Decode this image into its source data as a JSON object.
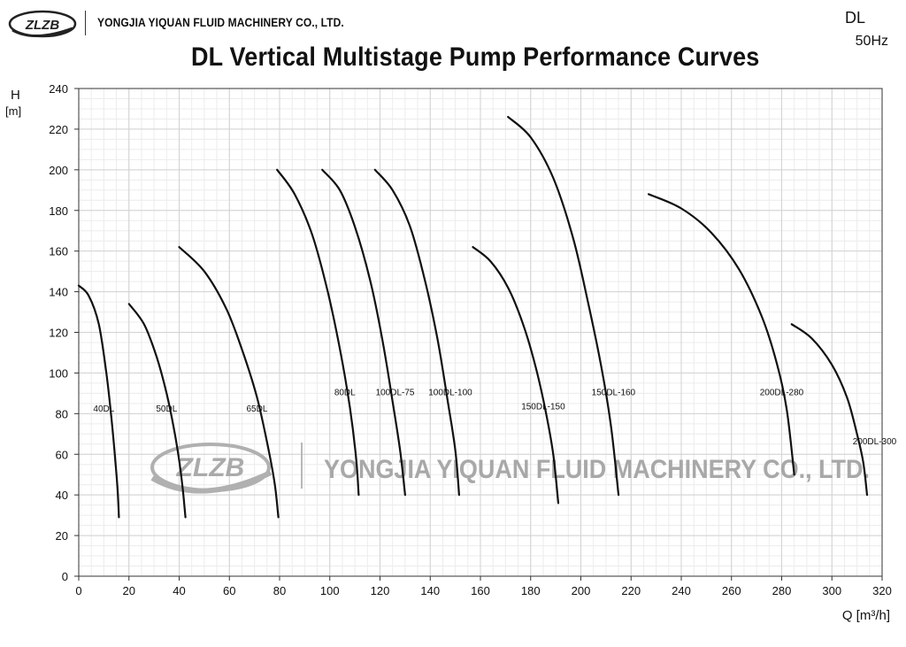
{
  "header": {
    "logo_text": "ZLZB",
    "company_name": "YONGJIA YIQUAN FLUID MACHINERY CO., LTD.",
    "model": "DL",
    "frequency": "50Hz"
  },
  "watermark": {
    "logo_text": "ZLZB",
    "company_name": "YONGJIA YIQUAN FLUID MACHINERY CO., LTD."
  },
  "chart_data": {
    "type": "line",
    "title": "DL Vertical Multistage Pump Performance Curves",
    "ylabel": "H",
    "ylabel_unit": "[m]",
    "xlabel": "Q [m³/h]",
    "xlim": [
      0,
      320
    ],
    "ylim": [
      0,
      240
    ],
    "xticks": [
      0,
      20,
      40,
      60,
      80,
      100,
      120,
      140,
      160,
      180,
      200,
      220,
      240,
      260,
      280,
      300,
      320
    ],
    "yticks": [
      0,
      20,
      40,
      60,
      80,
      100,
      120,
      140,
      160,
      180,
      200,
      220,
      240
    ],
    "grid": true,
    "legend": "none",
    "series": [
      {
        "name": "40DL",
        "label_at": [
          10,
          81
        ],
        "points": [
          [
            0,
            143
          ],
          [
            4,
            138
          ],
          [
            8,
            124
          ],
          [
            11,
            100
          ],
          [
            13,
            78
          ],
          [
            14.5,
            58
          ],
          [
            15.5,
            42
          ],
          [
            16,
            29
          ]
        ]
      },
      {
        "name": "50DL",
        "label_at": [
          35,
          81
        ],
        "points": [
          [
            20,
            134
          ],
          [
            26,
            124
          ],
          [
            31,
            108
          ],
          [
            35,
            90
          ],
          [
            38,
            72
          ],
          [
            40,
            57
          ],
          [
            41.5,
            42
          ],
          [
            42.5,
            29
          ]
        ]
      },
      {
        "name": "65DL",
        "label_at": [
          71,
          81
        ],
        "points": [
          [
            40,
            162
          ],
          [
            50,
            150
          ],
          [
            59,
            131
          ],
          [
            66,
            108
          ],
          [
            71,
            88
          ],
          [
            75,
            66
          ],
          [
            78,
            46
          ],
          [
            79.5,
            29
          ]
        ]
      },
      {
        "name": "80DL",
        "label_at": [
          106,
          89
        ],
        "points": [
          [
            79,
            200
          ],
          [
            86,
            188
          ],
          [
            93,
            168
          ],
          [
            99,
            141
          ],
          [
            104,
            112
          ],
          [
            108,
            83
          ],
          [
            110.5,
            58
          ],
          [
            111.5,
            40
          ]
        ]
      },
      {
        "name": "100DL-75",
        "label_at": [
          126,
          89
        ],
        "points": [
          [
            97,
            200
          ],
          [
            104,
            190
          ],
          [
            110,
            172
          ],
          [
            116,
            146
          ],
          [
            121,
            116
          ],
          [
            125,
            86
          ],
          [
            128,
            62
          ],
          [
            130,
            40
          ]
        ]
      },
      {
        "name": "100DL-100",
        "label_at": [
          148,
          89
        ],
        "points": [
          [
            118,
            200
          ],
          [
            125,
            190
          ],
          [
            132,
            172
          ],
          [
            138,
            145
          ],
          [
            143,
            116
          ],
          [
            147,
            86
          ],
          [
            150,
            62
          ],
          [
            151.5,
            40
          ]
        ]
      },
      {
        "name": "150DL-150",
        "label_at": [
          185,
          82
        ],
        "points": [
          [
            157,
            162
          ],
          [
            164,
            155
          ],
          [
            171,
            142
          ],
          [
            177,
            124
          ],
          [
            182,
            103
          ],
          [
            186,
            81
          ],
          [
            189,
            60
          ],
          [
            191,
            36
          ]
        ]
      },
      {
        "name": "150DL-160",
        "label_at": [
          213,
          89
        ],
        "points": [
          [
            171,
            226
          ],
          [
            180,
            216
          ],
          [
            189,
            196
          ],
          [
            197,
            166
          ],
          [
            203,
            134
          ],
          [
            208,
            104
          ],
          [
            212,
            74
          ],
          [
            215,
            40
          ]
        ]
      },
      {
        "name": "200DL-280",
        "label_at": [
          280,
          89
        ],
        "points": [
          [
            227,
            188
          ],
          [
            240,
            181
          ],
          [
            252,
            169
          ],
          [
            263,
            151
          ],
          [
            272,
            128
          ],
          [
            278,
            105
          ],
          [
            282,
            82
          ],
          [
            285,
            50
          ]
        ]
      },
      {
        "name": "200DL-300",
        "label_at": [
          317,
          65
        ],
        "points": [
          [
            284,
            124
          ],
          [
            292,
            117
          ],
          [
            300,
            104
          ],
          [
            306,
            88
          ],
          [
            310,
            70
          ],
          [
            312.5,
            56
          ],
          [
            314,
            40
          ]
        ]
      }
    ]
  }
}
